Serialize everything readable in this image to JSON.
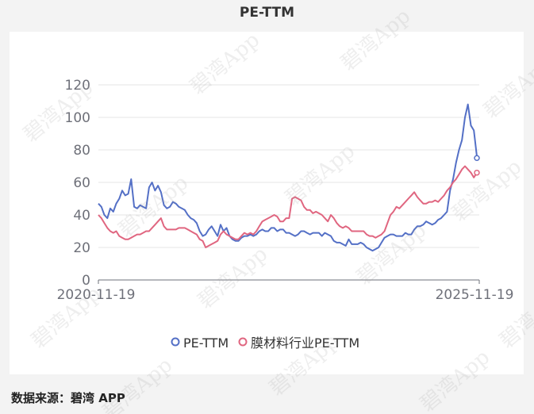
{
  "title": "PE-TTM",
  "source": "数据来源：碧湾 APP",
  "watermark": "碧湾App",
  "chart_data": {
    "type": "line",
    "title": "PE-TTM",
    "x_start": "2020-11-19",
    "x_end": "2025-11-19",
    "x_tick_labels": [
      "2020-11-19",
      "2025-11-19"
    ],
    "ylim": [
      0,
      120
    ],
    "y_ticks": [
      0,
      20,
      40,
      60,
      80,
      100,
      120
    ],
    "legend_position": "bottom",
    "grid": true,
    "series": [
      {
        "name": "PE-TTM",
        "color": "#5470c6",
        "values": [
          47,
          45,
          40,
          38,
          44,
          42,
          47,
          50,
          55,
          52,
          53,
          62,
          45,
          44,
          46,
          45,
          44,
          57,
          60,
          55,
          58,
          54,
          46,
          44,
          45,
          48,
          47,
          45,
          44,
          43,
          40,
          38,
          37,
          35,
          30,
          27,
          28,
          31,
          33,
          30,
          27,
          34,
          30,
          32,
          27,
          25,
          24,
          24,
          26,
          27,
          27,
          28,
          27,
          28,
          30,
          31,
          30,
          30,
          32,
          32,
          30,
          31,
          31,
          29,
          29,
          28,
          27,
          28,
          30,
          30,
          29,
          28,
          29,
          29,
          29,
          27,
          29,
          28,
          27,
          24,
          23,
          23,
          22,
          21,
          25,
          22,
          22,
          22,
          23,
          22,
          20,
          19,
          18,
          19,
          20,
          23,
          26,
          27,
          28,
          28,
          27,
          27,
          27,
          29,
          28,
          28,
          31,
          33,
          33,
          34,
          36,
          35,
          34,
          35,
          37,
          38,
          40,
          42,
          55,
          62,
          72,
          80,
          86,
          100,
          108,
          95,
          92,
          76
        ],
        "end_marker_value": 75
      },
      {
        "name": "膜材料行业PE-TTM",
        "color": "#e06680",
        "values": [
          40,
          38,
          35,
          32,
          30,
          29,
          30,
          27,
          26,
          25,
          25,
          26,
          27,
          28,
          28,
          29,
          30,
          30,
          32,
          34,
          36,
          38,
          33,
          31,
          31,
          31,
          31,
          32,
          32,
          32,
          31,
          30,
          29,
          28,
          25,
          24,
          20,
          21,
          22,
          23,
          24,
          28,
          30,
          28,
          27,
          26,
          25,
          25,
          27,
          29,
          28,
          29,
          28,
          30,
          33,
          36,
          37,
          38,
          39,
          40,
          39,
          36,
          36,
          38,
          38,
          50,
          51,
          50,
          49,
          45,
          43,
          43,
          41,
          42,
          41,
          40,
          38,
          36,
          40,
          38,
          35,
          33,
          32,
          33,
          32,
          30,
          30,
          30,
          30,
          30,
          28,
          27,
          27,
          26,
          27,
          28,
          30,
          35,
          40,
          42,
          45,
          44,
          46,
          48,
          50,
          52,
          54,
          51,
          49,
          47,
          47,
          48,
          48,
          49,
          48,
          50,
          52,
          55,
          57,
          60,
          62,
          65,
          68,
          70,
          68,
          66,
          63,
          66
        ],
        "end_marker_value": 66
      }
    ]
  }
}
